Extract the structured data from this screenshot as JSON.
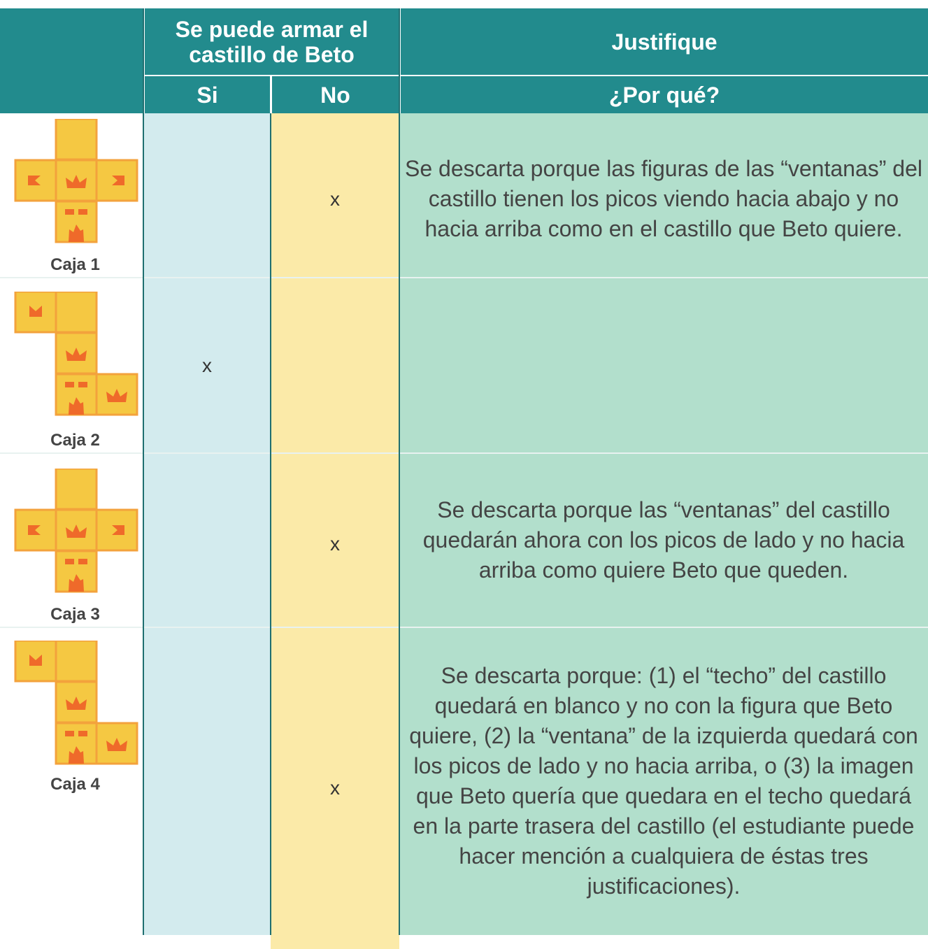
{
  "table": {
    "header": {
      "left": "Se puede armar el castillo de Beto",
      "right": "Justifique"
    },
    "subheader": {
      "si": "Si",
      "no": "No",
      "why": "¿Por qué?"
    },
    "rows": [
      {
        "label": "Caja 1",
        "no": "x",
        "why": "Se descarta porque las figuras de las “ventanas” del castillo tienen los picos viendo hacia abajo y no hacia arriba como en el castillo que Beto quiere."
      },
      {
        "label": "Caja 2",
        "si": "x"
      },
      {
        "label": "Caja 3",
        "no": "x",
        "why": "Se descarta porque las “ventanas” del castillo quedarán ahora con los picos de lado y no hacia arriba como quiere Beto que queden."
      },
      {
        "label": "Caja 4",
        "no": "x",
        "why": "Se descarta porque: (1) el “techo” del castillo quedará en blanco y no con la figura que Beto quiere, (2) la “ventana” de la izquierda quedará con los picos de lado y no hacia arriba, o (3) la imagen que Beto quería que quedara en el techo quedará en la parte trasera del castillo (el estudiante puede hacer mención a cualquiera de éstas tres justificaciones)."
      }
    ]
  }
}
